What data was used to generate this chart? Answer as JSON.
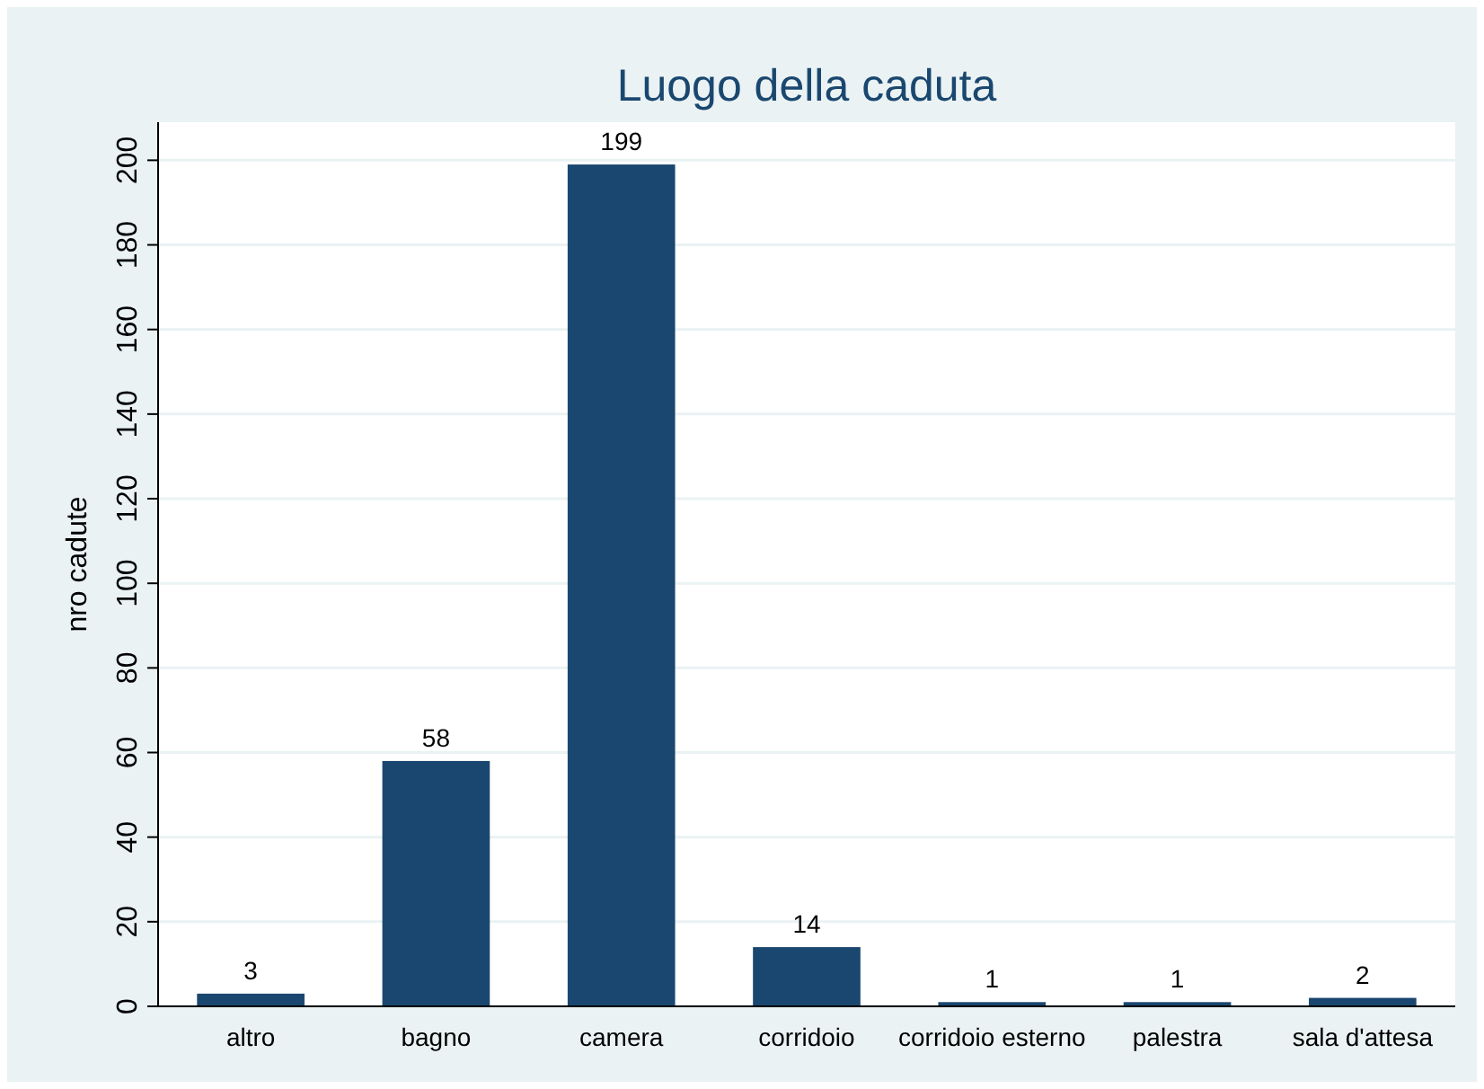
{
  "chart_data": {
    "type": "bar",
    "title": "Luogo della caduta",
    "ylabel": "nro cadute",
    "categories": [
      "altro",
      "bagno",
      "camera",
      "corridoio",
      "corridoio esterno",
      "palestra",
      "sala d'attesa"
    ],
    "values": [
      3,
      58,
      199,
      14,
      1,
      1,
      2
    ],
    "color": "#1a476f",
    "ylim": [
      0,
      209
    ],
    "yticks": [
      0,
      20,
      40,
      60,
      80,
      100,
      120,
      140,
      160,
      180,
      200
    ],
    "grid": "y",
    "data_labels": true
  }
}
